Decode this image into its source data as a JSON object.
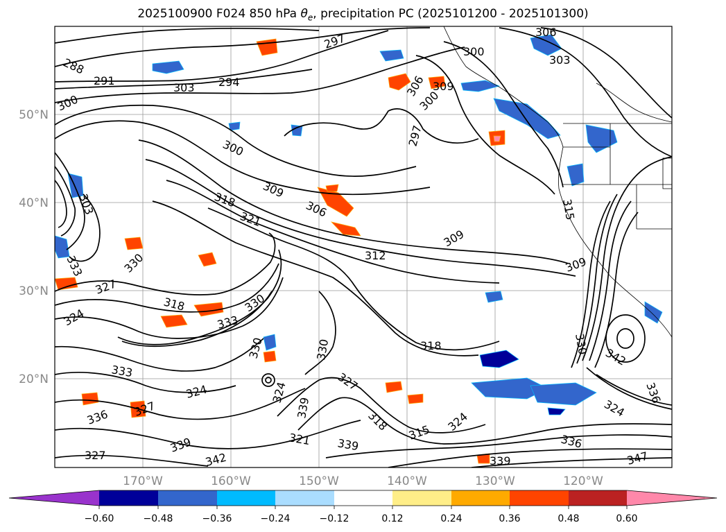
{
  "title": {
    "prefix": "2025100900 F024 850 hPa ",
    "symbol": "θ",
    "subscript": "e",
    "suffix": ", precipitation PC (2025101200 - 2025101300)"
  },
  "axes": {
    "lat_ticks": [
      "50°N",
      "40°N",
      "30°N",
      "20°N"
    ],
    "lon_ticks": [
      "170°W",
      "160°W",
      "150°W",
      "140°W",
      "130°W",
      "120°W"
    ]
  },
  "colorbar": {
    "colors": [
      "#9933cc",
      "#000099",
      "#3366cc",
      "#00bbff",
      "#aaddff",
      "#ffffff",
      "#ffee88",
      "#ffaa00",
      "#ff4400",
      "#bb2222",
      "#ff88aa"
    ],
    "tick_labels": [
      "−0.60",
      "−0.48",
      "−0.36",
      "−0.24",
      "−0.12",
      "0.12",
      "0.24",
      "0.36",
      "0.48",
      "0.60"
    ]
  },
  "contour_labels": [
    {
      "text": "288"
    },
    {
      "text": "291"
    },
    {
      "text": "303"
    },
    {
      "text": "294"
    },
    {
      "text": "297"
    },
    {
      "text": "306"
    },
    {
      "text": "300"
    },
    {
      "text": "303"
    },
    {
      "text": "300"
    },
    {
      "text": "306"
    },
    {
      "text": "309"
    },
    {
      "text": "297"
    },
    {
      "text": "300"
    },
    {
      "text": "300"
    },
    {
      "text": "303"
    },
    {
      "text": "318"
    },
    {
      "text": "309"
    },
    {
      "text": "306"
    },
    {
      "text": "321"
    },
    {
      "text": "312"
    },
    {
      "text": "309"
    },
    {
      "text": "315"
    },
    {
      "text": "333"
    },
    {
      "text": "330"
    },
    {
      "text": "327"
    },
    {
      "text": "318"
    },
    {
      "text": "333"
    },
    {
      "text": "330"
    },
    {
      "text": "324"
    },
    {
      "text": "333"
    },
    {
      "text": "330"
    },
    {
      "text": "330"
    },
    {
      "text": "324"
    },
    {
      "text": "318"
    },
    {
      "text": "327"
    },
    {
      "text": "342"
    },
    {
      "text": "336"
    },
    {
      "text": "330"
    },
    {
      "text": "327"
    },
    {
      "text": "324"
    },
    {
      "text": "318"
    },
    {
      "text": "315"
    },
    {
      "text": "324"
    },
    {
      "text": "321"
    },
    {
      "text": "339"
    },
    {
      "text": "339"
    },
    {
      "text": "336"
    },
    {
      "text": "342"
    },
    {
      "text": "327"
    },
    {
      "text": "339"
    },
    {
      "text": "336"
    },
    {
      "text": "339"
    },
    {
      "text": "347"
    },
    {
      "text": "324"
    },
    {
      "text": "309"
    }
  ]
}
